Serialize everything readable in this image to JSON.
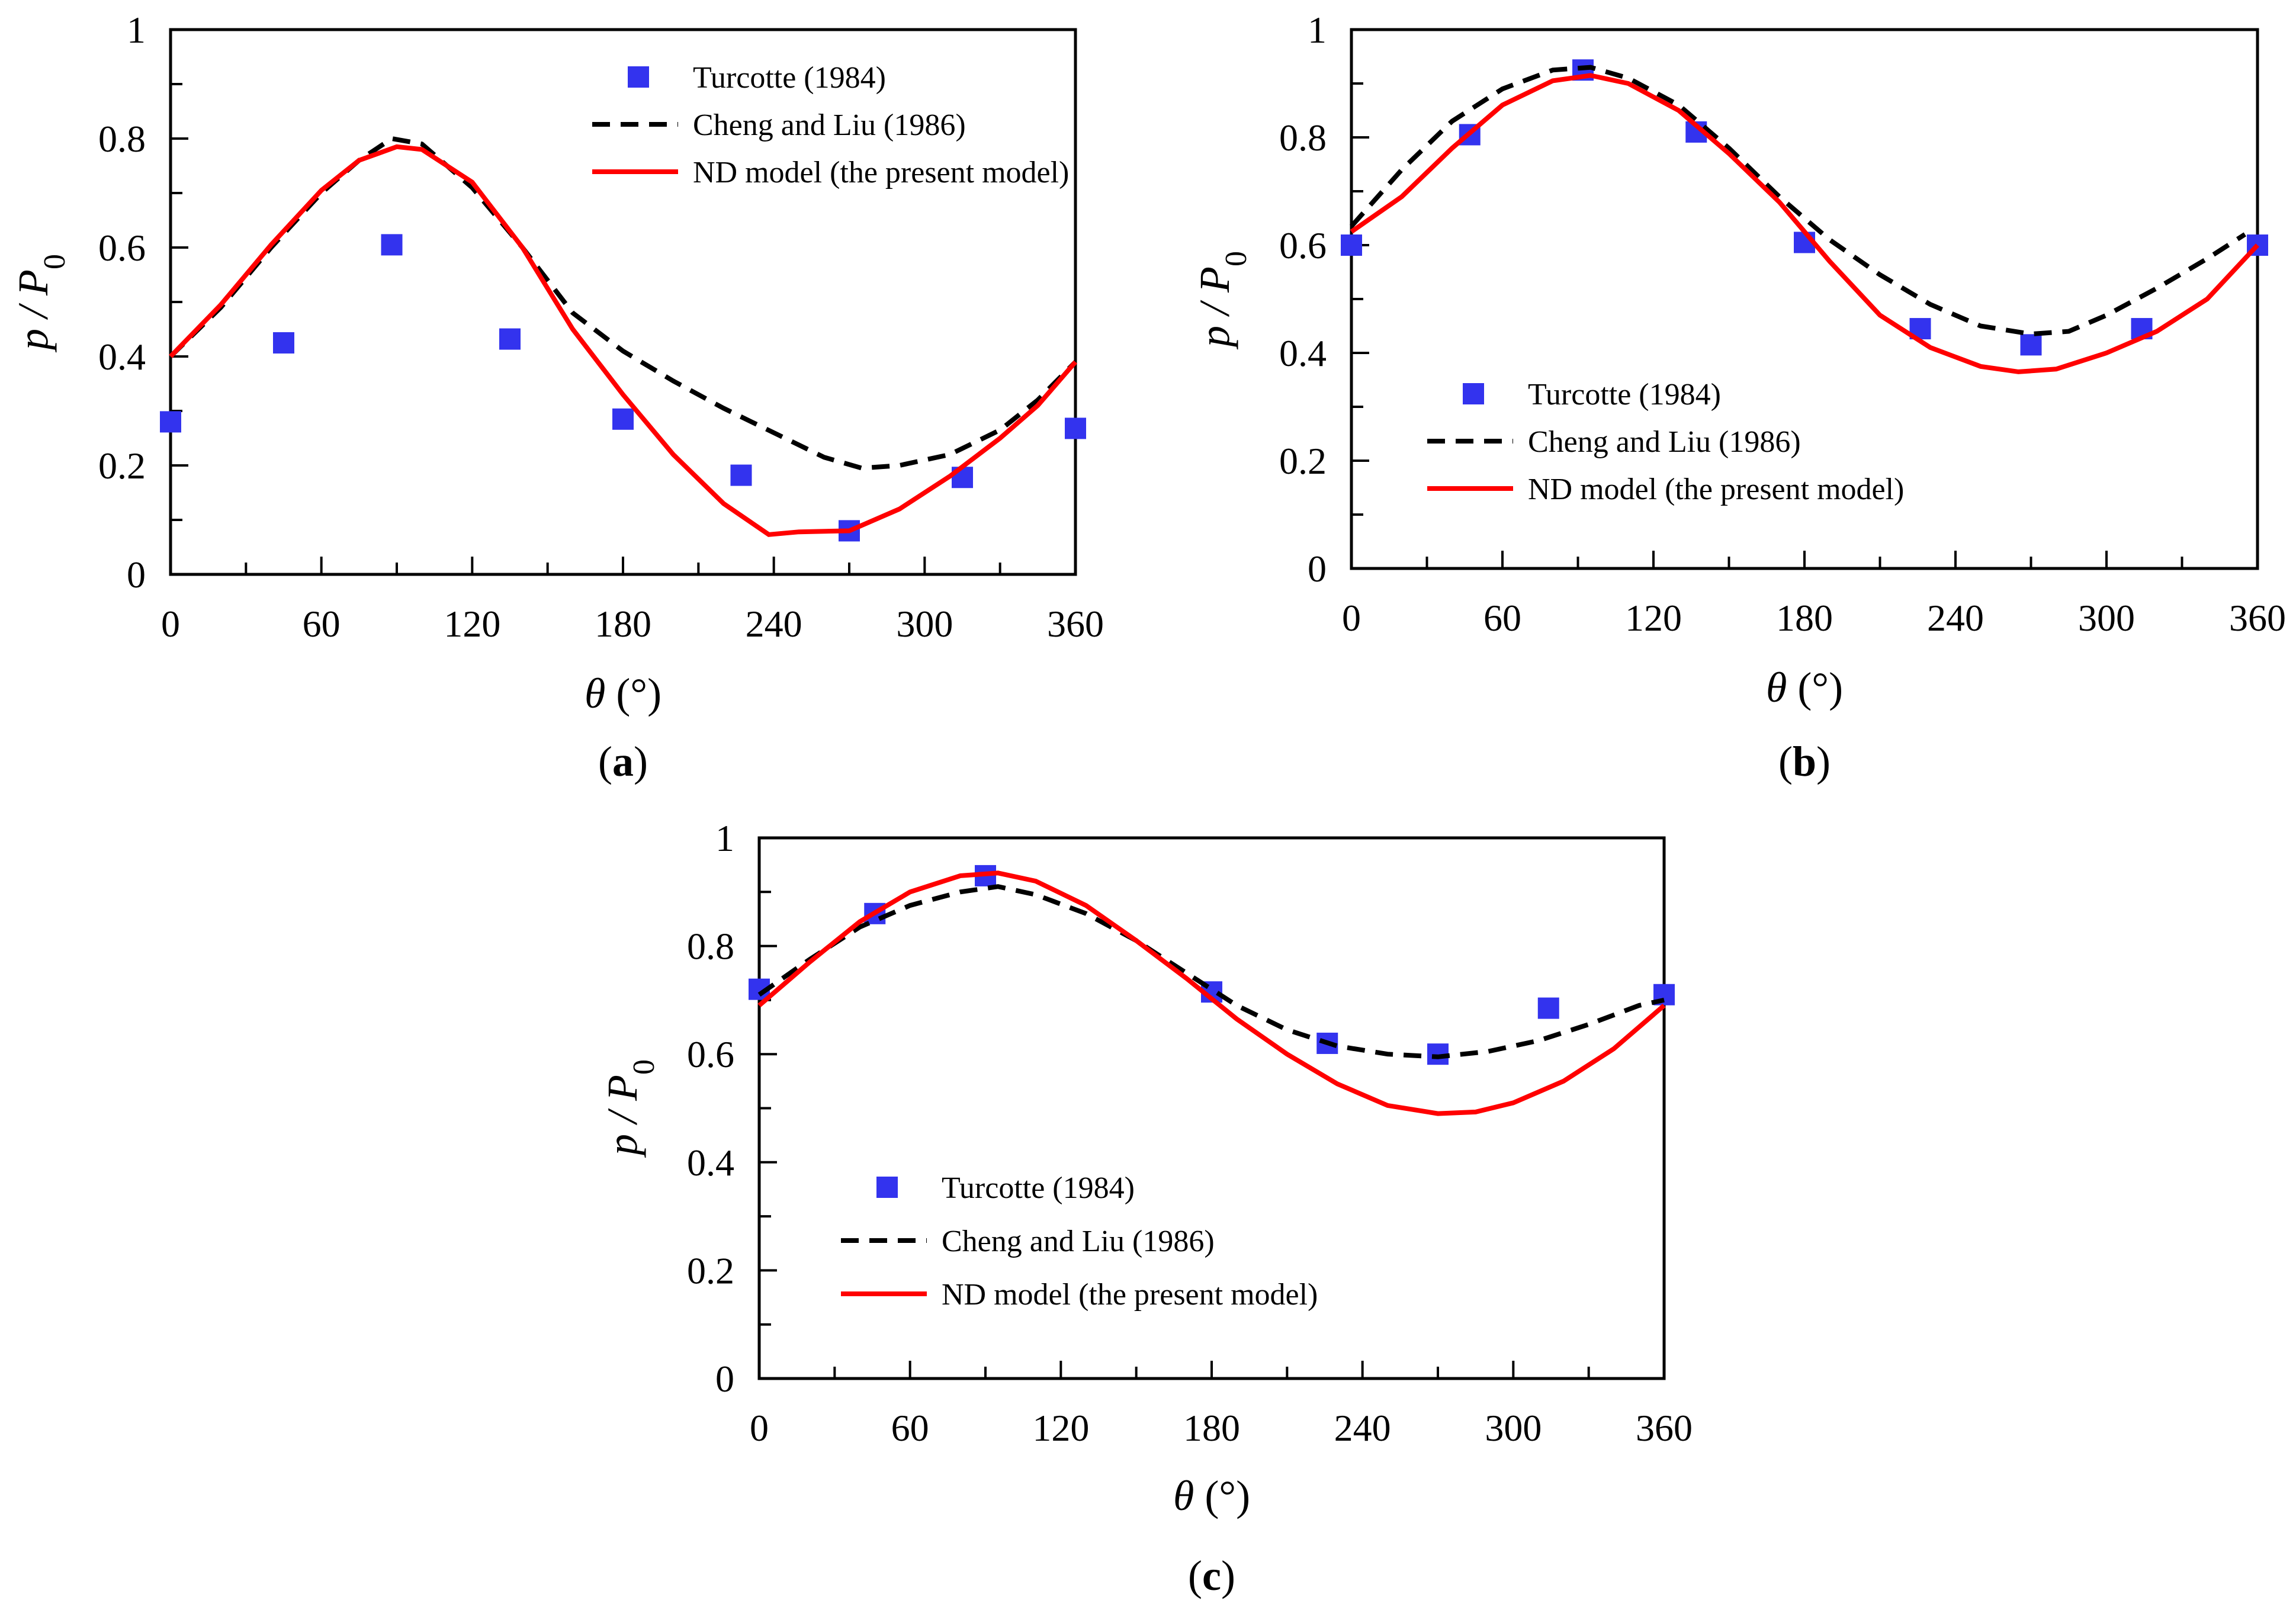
{
  "colors": {
    "turcotte": "#3333ee",
    "cheng": "#000000",
    "nd": "#ff0000"
  },
  "chart_data": [
    {
      "type": "line",
      "panel_label": "(a)",
      "panel_letter": "a",
      "xlabel": "θ (°)",
      "ylabel": "p / P0",
      "xlim": [
        0,
        360
      ],
      "ylim": [
        0,
        1
      ],
      "x_ticks": [
        "0",
        "60",
        "120",
        "180",
        "240",
        "300",
        "360"
      ],
      "y_ticks": [
        "0",
        "0.2",
        "0.4",
        "0.6",
        "0.8",
        "1"
      ],
      "legend_position": "top-right",
      "series": [
        {
          "name": "Turcotte (1984)",
          "kind": "scatter",
          "x": [
            0,
            45,
            88,
            135,
            180,
            227,
            270,
            315,
            360
          ],
          "y": [
            0.28,
            0.425,
            0.605,
            0.432,
            0.285,
            0.182,
            0.08,
            0.178,
            0.268
          ]
        },
        {
          "name": "Cheng and Liu (1986)",
          "kind": "dashed",
          "x": [
            0,
            20,
            40,
            60,
            75,
            88,
            100,
            120,
            140,
            160,
            180,
            200,
            220,
            240,
            260,
            275,
            290,
            310,
            330,
            345,
            360
          ],
          "y": [
            0.4,
            0.49,
            0.6,
            0.7,
            0.76,
            0.8,
            0.79,
            0.71,
            0.6,
            0.48,
            0.41,
            0.355,
            0.305,
            0.26,
            0.215,
            0.195,
            0.2,
            0.22,
            0.265,
            0.32,
            0.39
          ]
        },
        {
          "name": "ND model (the present model)",
          "kind": "solid",
          "x": [
            0,
            20,
            40,
            60,
            75,
            90,
            100,
            120,
            140,
            160,
            180,
            200,
            220,
            238,
            250,
            270,
            290,
            310,
            330,
            345,
            360
          ],
          "y": [
            0.4,
            0.495,
            0.605,
            0.705,
            0.76,
            0.785,
            0.78,
            0.72,
            0.6,
            0.45,
            0.33,
            0.22,
            0.13,
            0.073,
            0.078,
            0.08,
            0.12,
            0.18,
            0.25,
            0.31,
            0.39
          ]
        }
      ]
    },
    {
      "type": "line",
      "panel_label": "(b)",
      "panel_letter": "b",
      "xlabel": "θ (°)",
      "ylabel": "p / P0",
      "xlim": [
        0,
        360
      ],
      "ylim": [
        0,
        1
      ],
      "x_ticks": [
        "0",
        "60",
        "120",
        "180",
        "240",
        "300",
        "360"
      ],
      "y_ticks": [
        "0",
        "0.2",
        "0.4",
        "0.6",
        "0.8",
        "1"
      ],
      "legend_position": "bottom-left",
      "series": [
        {
          "name": "Turcotte (1984)",
          "kind": "scatter",
          "x": [
            0,
            47,
            92,
            137,
            180,
            226,
            270,
            314,
            360
          ],
          "y": [
            0.6,
            0.805,
            0.925,
            0.81,
            0.605,
            0.445,
            0.415,
            0.445,
            0.6
          ]
        },
        {
          "name": "Cheng and Liu (1986)",
          "kind": "dashed",
          "x": [
            0,
            20,
            40,
            60,
            80,
            95,
            110,
            130,
            150,
            170,
            190,
            210,
            230,
            250,
            270,
            285,
            300,
            320,
            340,
            355
          ],
          "y": [
            0.635,
            0.74,
            0.83,
            0.89,
            0.925,
            0.93,
            0.91,
            0.86,
            0.78,
            0.69,
            0.61,
            0.545,
            0.49,
            0.45,
            0.435,
            0.44,
            0.47,
            0.52,
            0.575,
            0.62
          ]
        },
        {
          "name": "ND model (the present model)",
          "kind": "solid",
          "x": [
            0,
            20,
            40,
            60,
            80,
            95,
            110,
            130,
            150,
            170,
            190,
            210,
            230,
            250,
            265,
            280,
            300,
            320,
            340,
            360
          ],
          "y": [
            0.625,
            0.69,
            0.78,
            0.86,
            0.905,
            0.915,
            0.9,
            0.85,
            0.77,
            0.68,
            0.57,
            0.47,
            0.41,
            0.375,
            0.365,
            0.37,
            0.4,
            0.44,
            0.5,
            0.6
          ]
        }
      ]
    },
    {
      "type": "line",
      "panel_label": "(c)",
      "panel_letter": "c",
      "xlabel": "θ (°)",
      "ylabel": "p / P0",
      "xlim": [
        0,
        360
      ],
      "ylim": [
        0,
        1
      ],
      "x_ticks": [
        "0",
        "60",
        "120",
        "180",
        "240",
        "300",
        "360"
      ],
      "y_ticks": [
        "0",
        "0.2",
        "0.4",
        "0.6",
        "0.8",
        "1"
      ],
      "legend_position": "bottom-left",
      "series": [
        {
          "name": "Turcotte (1984)",
          "kind": "scatter",
          "x": [
            0,
            46,
            90,
            180,
            226,
            270,
            314,
            360
          ],
          "y": [
            0.72,
            0.86,
            0.93,
            0.715,
            0.62,
            0.6,
            0.685,
            0.71
          ]
        },
        {
          "name": "Cheng and Liu (1986)",
          "kind": "dashed",
          "x": [
            0,
            20,
            40,
            60,
            80,
            95,
            110,
            130,
            150,
            170,
            190,
            210,
            230,
            250,
            270,
            290,
            310,
            330,
            350,
            360
          ],
          "y": [
            0.71,
            0.775,
            0.835,
            0.875,
            0.9,
            0.91,
            0.895,
            0.86,
            0.81,
            0.75,
            0.69,
            0.645,
            0.615,
            0.6,
            0.595,
            0.605,
            0.625,
            0.655,
            0.69,
            0.7
          ]
        },
        {
          "name": "ND model (the present model)",
          "kind": "solid",
          "x": [
            0,
            20,
            40,
            60,
            80,
            95,
            110,
            130,
            150,
            170,
            190,
            210,
            230,
            250,
            270,
            285,
            300,
            320,
            340,
            360
          ],
          "y": [
            0.69,
            0.77,
            0.845,
            0.9,
            0.93,
            0.935,
            0.92,
            0.875,
            0.81,
            0.74,
            0.665,
            0.6,
            0.545,
            0.505,
            0.49,
            0.493,
            0.51,
            0.55,
            0.61,
            0.69
          ]
        }
      ]
    }
  ]
}
